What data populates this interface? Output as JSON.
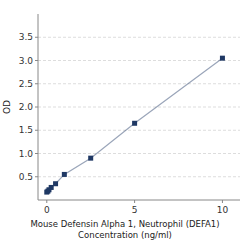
{
  "chart_data": {
    "type": "line",
    "x_label": "Mouse Defensin Alpha 1, Neutrophil (DEFA1)\nConcentration (ng/ml)",
    "y_label": "OD",
    "x": [
      0,
      0.0625,
      0.125,
      0.25,
      0.5,
      1,
      2.5,
      5,
      10
    ],
    "series": [
      {
        "color": "#1f3864",
        "marker": "square",
        "line_style": "solid",
        "values": [
          0.17,
          0.19,
          0.22,
          0.27,
          0.35,
          0.55,
          0.9,
          1.65,
          3.05
        ]
      }
    ],
    "xlim": [
      -0.5,
      11
    ],
    "ylim": [
      0.0,
      4.0
    ],
    "xticks": [
      0,
      5,
      10
    ],
    "yticks": [
      0.5,
      {
        "value": 1.0,
        "label": "1.0"
      },
      1.5,
      {
        "value": 2.0,
        "label": "2.0"
      },
      2.5,
      {
        "value": 3.0,
        "label": "3.0"
      },
      3.5
    ],
    "grid": true
  }
}
